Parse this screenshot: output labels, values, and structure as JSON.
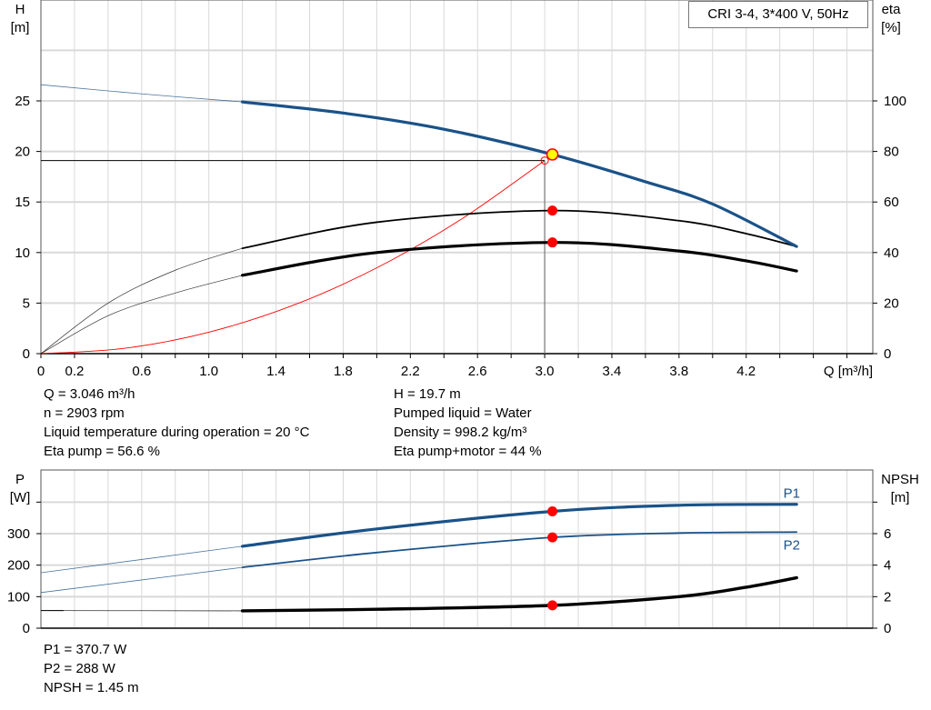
{
  "title": "CRI 3-4, 3*400 V, 50Hz",
  "colors": {
    "head": "#1a5288",
    "power": "#1a5288",
    "efficiency": "#000000",
    "system": "#ff0000",
    "duty_point": "#ffff00",
    "marker": "#ff0000",
    "grid": "#d9d9d9"
  },
  "info_top_left": [
    "Q = 3.046 m³/h",
    "n = 2903 rpm",
    "Liquid temperature during operation = 20 °C",
    "Eta pump = 56.6 %"
  ],
  "info_top_right": [
    "H = 19.7 m",
    "Pumped liquid = Water",
    "Density = 998.2 kg/m³",
    "Eta pump+motor = 44 %"
  ],
  "info_bottom": [
    "P1 = 370.7 W",
    "P2 = 288 W",
    "NPSH = 1.45 m"
  ],
  "chart_data": [
    {
      "type": "line",
      "title": "CRI 3-4, 3*400 V, 50Hz",
      "xlabel": "Q [m³/h]",
      "ylabel": "H\n[m]",
      "y2label": "eta\n[%]",
      "xlim": [
        0,
        4.95
      ],
      "ylim": [
        0,
        35
      ],
      "y2lim": [
        0,
        140
      ],
      "x_ticks": [
        "0",
        "0.2",
        "0.6",
        "1.0",
        "1.4",
        "1.8",
        "2.2",
        "2.6",
        "3.0",
        "3.4",
        "3.8",
        "4.2"
      ],
      "y_ticks": [
        "0",
        "5",
        "10",
        "15",
        "20",
        "25"
      ],
      "y2_ticks": [
        "0",
        "20",
        "40",
        "60",
        "80",
        "100"
      ],
      "grid": true,
      "series": [
        {
          "id": "head",
          "axis": "H",
          "x": [
            0,
            0.6,
            1.2,
            1.8,
            2.4,
            3.046,
            3.6,
            4.0,
            4.5
          ],
          "y": [
            26.6,
            25.7,
            24.9,
            23.8,
            22.2,
            19.7,
            17.0,
            14.8,
            10.6
          ]
        },
        {
          "id": "eta-pump",
          "axis": "eta",
          "x": [
            0,
            0.4,
            0.8,
            1.2,
            2.0,
            3.046,
            3.8,
            4.2,
            4.5
          ],
          "y": [
            0,
            20,
            33,
            41.7,
            52,
            56.6,
            52.6,
            47.5,
            42.4
          ]
        },
        {
          "id": "eta-pump-motor",
          "axis": "eta",
          "x": [
            0,
            0.4,
            0.8,
            1.2,
            2.0,
            3.046,
            3.8,
            4.2,
            4.5
          ],
          "y": [
            0,
            15,
            24,
            31,
            40,
            44,
            40.6,
            36.7,
            32.7
          ]
        },
        {
          "id": "system-curve",
          "axis": "H",
          "x": [
            0,
            0.5,
            1.0,
            1.5,
            2.0,
            2.5,
            3.0
          ],
          "y": [
            0,
            0.53,
            2.12,
            4.77,
            8.49,
            13.26,
            19.1
          ]
        }
      ],
      "duty_point": {
        "Q": 3.046,
        "H": 19.7
      },
      "system_point": {
        "Q": 3.0,
        "H": 19.1
      },
      "markers": [
        {
          "Q": 3.046,
          "eta": 56.6
        },
        {
          "Q": 3.046,
          "eta": 44
        }
      ],
      "allowed_range_start_Q": 1.2
    },
    {
      "type": "line",
      "ylabel": "P\n[W]",
      "y2label": "NPSH\n[m]",
      "xlim": [
        0,
        4.95
      ],
      "ylim": [
        0,
        500
      ],
      "y2lim": [
        0,
        10
      ],
      "y_ticks": [
        "0",
        "100",
        "200",
        "300"
      ],
      "y2_ticks": [
        "0",
        "2",
        "4",
        "6"
      ],
      "grid": true,
      "series": [
        {
          "id": "P1",
          "name": "P1",
          "axis": "P",
          "x": [
            0,
            1.2,
            2.0,
            3.046,
            3.8,
            4.5
          ],
          "y": [
            176,
            260,
            315,
            370.7,
            390,
            393
          ]
        },
        {
          "id": "P2",
          "name": "P2",
          "axis": "P",
          "x": [
            0,
            1.2,
            2.0,
            3.046,
            3.8,
            4.5
          ],
          "y": [
            113,
            193,
            240,
            288,
            302,
            305
          ]
        },
        {
          "id": "NPSH",
          "axis": "NPSH",
          "x": [
            0,
            1.2,
            2.0,
            3.046,
            3.8,
            4.2,
            4.5
          ],
          "y": [
            1.12,
            1.1,
            1.2,
            1.45,
            2.0,
            2.6,
            3.2
          ]
        }
      ],
      "markers": [
        {
          "Q": 3.046,
          "P": 370.7
        },
        {
          "Q": 3.046,
          "P": 288
        },
        {
          "Q": 3.046,
          "NPSH": 1.45
        }
      ]
    }
  ]
}
